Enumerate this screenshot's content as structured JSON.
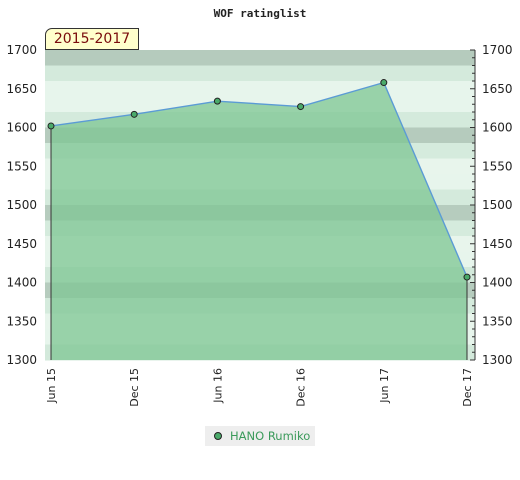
{
  "chart_data": {
    "type": "area",
    "title": "WOF ratinglist",
    "period_label": "2015-2017",
    "categories": [
      "Jun 15",
      "Dec 15",
      "Jun 16",
      "Dec 16",
      "Jun 17",
      "Dec 17"
    ],
    "series": [
      {
        "name": "HANO Rumiko",
        "values": [
          1602,
          1617,
          1634,
          1627,
          1658,
          1407
        ]
      }
    ],
    "ylim": [
      1300,
      1700
    ],
    "yticks": [
      1300,
      1350,
      1400,
      1450,
      1500,
      1550,
      1600,
      1650,
      1700
    ],
    "xlabel": "",
    "ylabel": "",
    "grid": true,
    "legend": "bottom",
    "colors": {
      "area_fill": "#7ec593",
      "line": "#5b9bd5",
      "marker": "#4aaa6a",
      "band_dark": "#b5dcc0",
      "band_light": "#e9f5ec",
      "badge_bg": "#ffffcc",
      "badge_text": "#7a0c0c"
    }
  }
}
